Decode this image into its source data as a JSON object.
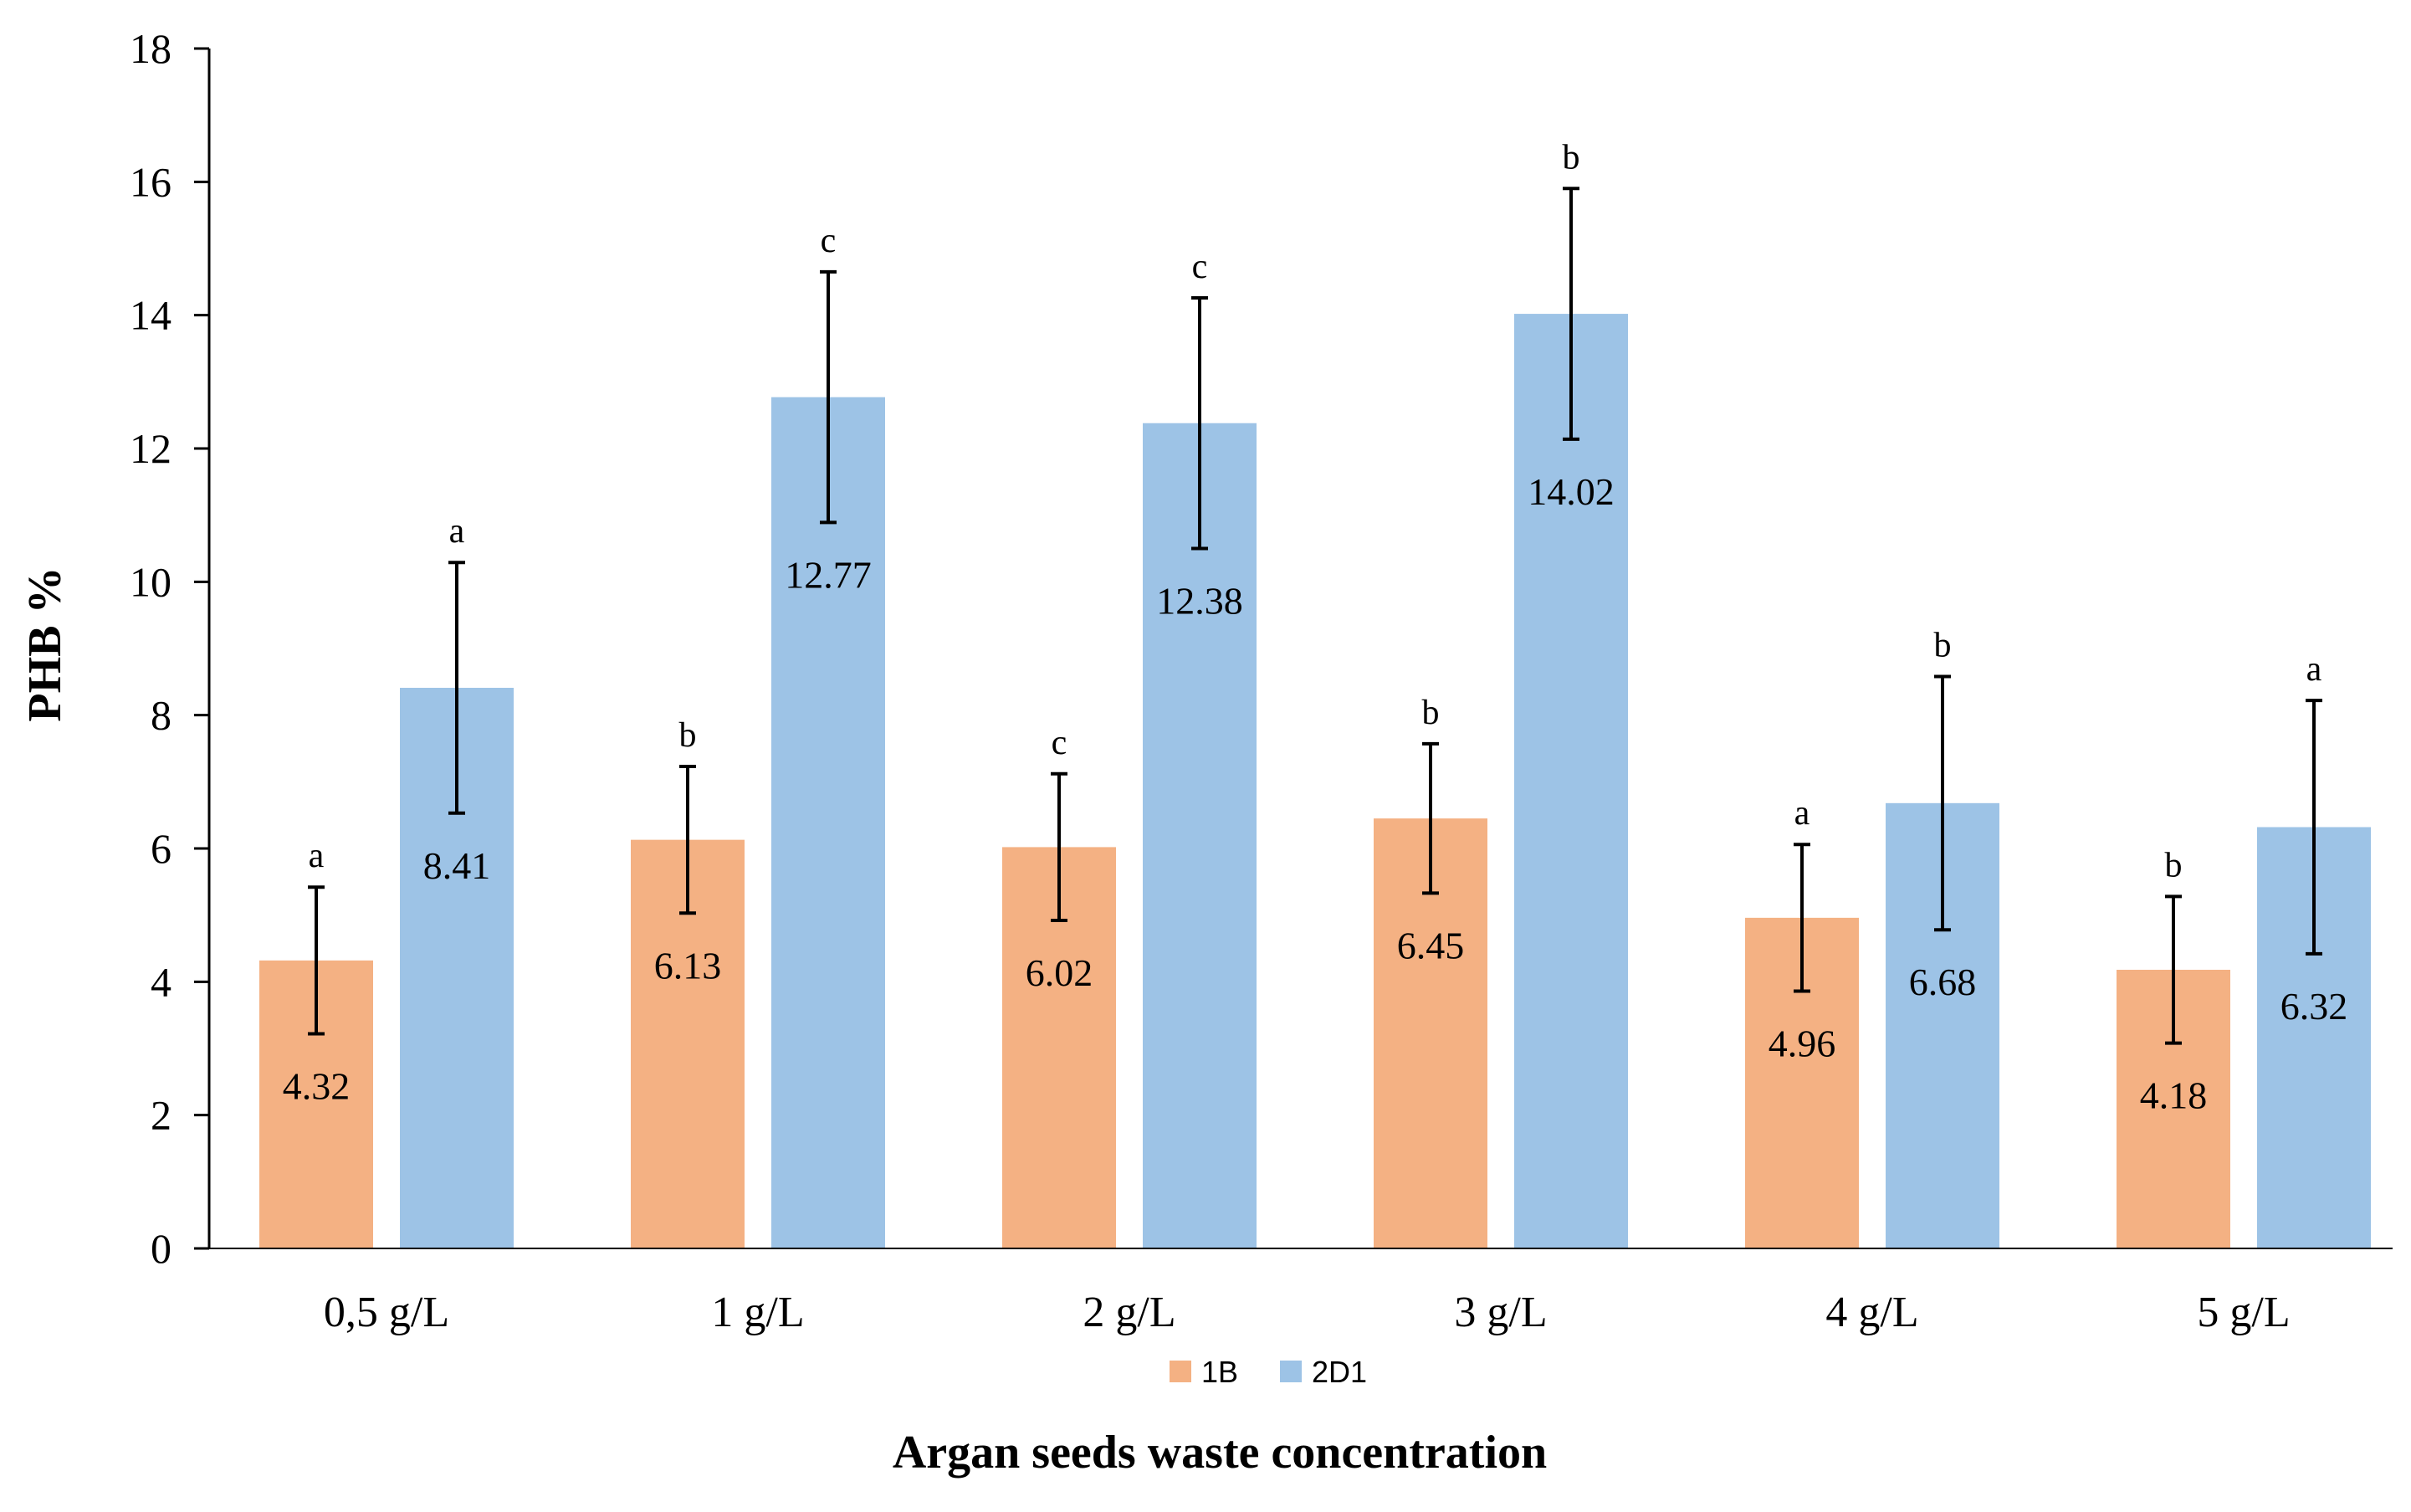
{
  "chart_data": {
    "type": "bar",
    "title": "",
    "xlabel": "Argan seeds waste  concentration",
    "ylabel": "PHB %",
    "ylim": [
      0,
      18
    ],
    "yticks": [
      0,
      2,
      4,
      6,
      8,
      10,
      12,
      14,
      16,
      18
    ],
    "grid": false,
    "legend_position": "bottom",
    "categories": [
      "0,5 g/L",
      "1 g/L",
      "2 g/L",
      "3 g/L",
      "4  g/L",
      "5 g/L"
    ],
    "series": [
      {
        "name": "1B",
        "color": "#F4B183",
        "values": [
          4.32,
          6.13,
          6.02,
          6.45,
          4.96,
          4.18
        ],
        "value_labels": [
          "4.32",
          "6.13",
          "6.02",
          "6.45",
          "4.96",
          "4.18"
        ],
        "errors": [
          1.1,
          1.1,
          1.1,
          1.12,
          1.1,
          1.1
        ],
        "significance": [
          "a",
          "b",
          "c",
          "b",
          "a",
          "b"
        ]
      },
      {
        "name": "2D1",
        "color": "#9DC3E6",
        "values": [
          8.41,
          12.77,
          12.38,
          14.02,
          6.68,
          6.32
        ],
        "value_labels": [
          "8.41",
          "12.77",
          "12.38",
          "14.02",
          "6.68",
          "6.32"
        ],
        "errors": [
          1.88,
          1.88,
          1.88,
          1.88,
          1.9,
          1.9
        ],
        "significance": [
          "a",
          "c",
          "c",
          "b",
          "b",
          "a"
        ]
      }
    ]
  }
}
